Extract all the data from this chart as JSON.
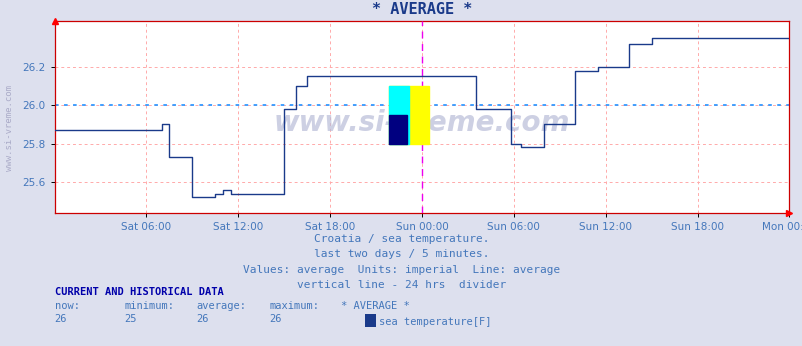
{
  "title": "* AVERAGE *",
  "bg_color": "#dde0ee",
  "plot_bg_color": "#ffffff",
  "line_color": "#1a3a8a",
  "avg_line_color": "#3399ff",
  "grid_color": "#ffaaaa",
  "divider_color": "#ee00ee",
  "tick_color": "#4477bb",
  "text_color": "#4477bb",
  "spine_color": "#cc0000",
  "ylim": [
    25.44,
    26.44
  ],
  "yticks": [
    25.6,
    25.8,
    26.0,
    26.2
  ],
  "avg_value": 26.0,
  "xtick_hours": [
    6,
    12,
    18,
    24,
    30,
    36,
    42,
    48
  ],
  "xtick_labels": [
    "Sat 06:00",
    "Sat 12:00",
    "Sat 18:00",
    "Sun 00:00",
    "Sun 06:00",
    "Sun 12:00",
    "Sun 18:00",
    "Mon 00:00"
  ],
  "divider_x": 24,
  "subtitle_lines": [
    "Croatia / sea temperature.",
    "last two days / 5 minutes.",
    "Values: average  Units: imperial  Line: average",
    "vertical line - 24 hrs  divider"
  ],
  "current_label": "CURRENT AND HISTORICAL DATA",
  "stat_headers": [
    "now:",
    "minimum:",
    "average:",
    "maximum:",
    "* AVERAGE *"
  ],
  "stat_values": [
    "26",
    "25",
    "26",
    "26"
  ],
  "legend_label": "sea temperature[F]",
  "watermark_side": "www.si-vreme.com",
  "watermark_center": "www.si-vreme.com",
  "segments": [
    [
      0.0,
      25.87
    ],
    [
      6.0,
      25.87
    ],
    [
      7.0,
      25.9
    ],
    [
      7.5,
      25.73
    ],
    [
      9.0,
      25.52
    ],
    [
      10.5,
      25.54
    ],
    [
      11.0,
      25.56
    ],
    [
      11.5,
      25.54
    ],
    [
      13.5,
      25.54
    ],
    [
      15.0,
      25.98
    ],
    [
      15.8,
      26.1
    ],
    [
      16.5,
      26.15
    ],
    [
      26.5,
      26.15
    ],
    [
      27.5,
      25.98
    ],
    [
      29.0,
      25.98
    ],
    [
      29.8,
      25.8
    ],
    [
      30.5,
      25.78
    ],
    [
      32.0,
      25.9
    ],
    [
      34.0,
      26.18
    ],
    [
      35.5,
      26.2
    ],
    [
      37.5,
      26.32
    ],
    [
      39.0,
      26.35
    ],
    [
      48.0,
      26.35
    ]
  ]
}
